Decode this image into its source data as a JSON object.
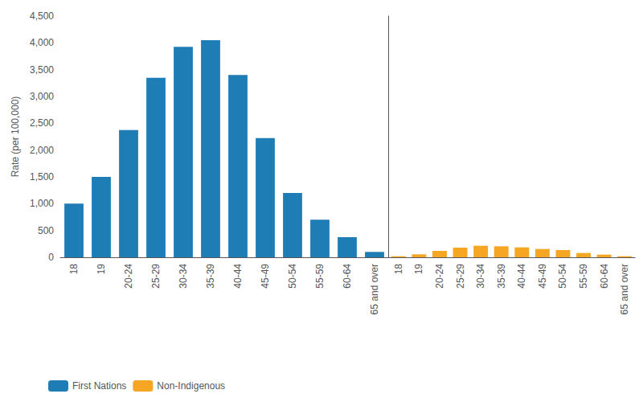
{
  "chart_data": {
    "type": "bar",
    "ylabel": "Rate (per 100,000)",
    "categories": [
      "18",
      "19",
      "20-24",
      "25-29",
      "30-34",
      "35-39",
      "40-44",
      "45-49",
      "50-54",
      "55-59",
      "60-64",
      "65 and over"
    ],
    "series": [
      {
        "name": "First Nations",
        "color": "#1f7db5",
        "values": [
          1000,
          1500,
          2375,
          3350,
          3925,
          4050,
          3400,
          2225,
          1200,
          700,
          375,
          100
        ]
      },
      {
        "name": "Non-Indigenous",
        "color": "#f5a623",
        "values": [
          20,
          55,
          120,
          180,
          215,
          205,
          185,
          155,
          135,
          80,
          50,
          20
        ]
      }
    ],
    "ylim": [
      0,
      4500
    ],
    "yticks": [
      0,
      500,
      1000,
      1500,
      2000,
      2500,
      3000,
      3500,
      4000,
      4500
    ],
    "grid": false,
    "legend": "lower left"
  }
}
